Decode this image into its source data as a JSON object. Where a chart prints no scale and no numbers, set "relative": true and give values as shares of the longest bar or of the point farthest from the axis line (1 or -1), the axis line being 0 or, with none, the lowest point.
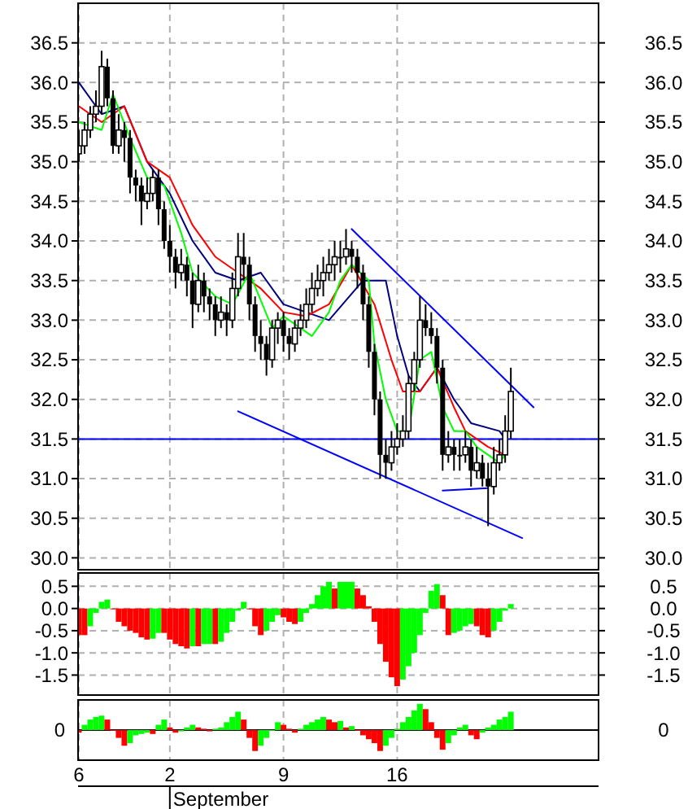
{
  "chart_data": [
    {
      "type": "candlestick",
      "color": "#000000",
      "grid": true,
      "tick_labels": "y",
      "categories": [
        "6",
        null,
        null,
        null,
        null,
        null,
        null,
        null,
        null,
        null,
        null,
        null,
        null,
        null,
        null,
        null,
        "2",
        null,
        null,
        null,
        null,
        null,
        null,
        null,
        null,
        null,
        null,
        null,
        null,
        null,
        null,
        null,
        null,
        null,
        null,
        null,
        "9",
        null,
        null,
        null,
        null,
        null,
        null,
        null,
        null,
        null,
        null,
        null,
        null,
        null,
        null,
        null,
        null,
        null,
        null,
        null,
        "16",
        null,
        null,
        null,
        null,
        null,
        null,
        null,
        null,
        null,
        null,
        null,
        null,
        null,
        null,
        null,
        null,
        null,
        null,
        null,
        null,
        null,
        null,
        null,
        null,
        null,
        null,
        null,
        null,
        null,
        null,
        null,
        null,
        null,
        null,
        null
      ],
      "ohlc": [
        [
          35.1,
          35.4,
          35.0,
          35.2
        ],
        [
          35.2,
          35.5,
          35.1,
          35.4
        ],
        [
          35.4,
          35.7,
          35.3,
          35.6
        ],
        [
          35.6,
          35.9,
          35.5,
          35.7
        ],
        [
          35.7,
          36.4,
          35.6,
          36.2
        ],
        [
          36.2,
          36.3,
          35.7,
          35.8
        ],
        [
          35.8,
          35.9,
          35.1,
          35.2
        ],
        [
          35.2,
          35.6,
          35.1,
          35.4
        ],
        [
          35.4,
          35.5,
          35.0,
          35.3
        ],
        [
          35.3,
          35.4,
          34.6,
          34.8
        ],
        [
          34.8,
          34.9,
          34.5,
          34.7
        ],
        [
          34.7,
          34.8,
          34.2,
          34.5
        ],
        [
          34.5,
          34.8,
          34.4,
          34.6
        ],
        [
          34.6,
          34.9,
          34.5,
          34.8
        ],
        [
          34.8,
          34.9,
          34.2,
          34.4
        ],
        [
          34.4,
          34.5,
          33.9,
          34.0
        ],
        [
          34.0,
          34.2,
          33.6,
          33.8
        ],
        [
          33.8,
          33.9,
          33.4,
          33.6
        ],
        [
          33.6,
          33.9,
          33.5,
          33.7
        ],
        [
          33.7,
          33.8,
          33.3,
          33.5
        ],
        [
          33.5,
          33.6,
          32.9,
          33.2
        ],
        [
          33.2,
          33.7,
          33.1,
          33.5
        ],
        [
          33.5,
          33.6,
          33.1,
          33.3
        ],
        [
          33.3,
          33.4,
          33.0,
          33.2
        ],
        [
          33.2,
          33.3,
          32.8,
          33.0
        ],
        [
          33.0,
          33.3,
          32.9,
          33.1
        ],
        [
          33.1,
          33.2,
          32.8,
          33.0
        ],
        [
          33.0,
          33.6,
          32.9,
          33.4
        ],
        [
          33.4,
          34.1,
          33.3,
          33.8
        ],
        [
          33.8,
          34.1,
          33.5,
          33.7
        ],
        [
          33.7,
          33.8,
          33.0,
          33.2
        ],
        [
          33.2,
          33.3,
          32.6,
          32.8
        ],
        [
          32.8,
          33.0,
          32.5,
          32.7
        ],
        [
          32.7,
          32.8,
          32.3,
          32.5
        ],
        [
          32.5,
          33.0,
          32.4,
          32.9
        ],
        [
          32.9,
          33.1,
          32.7,
          33.0
        ],
        [
          33.0,
          33.1,
          32.6,
          32.8
        ],
        [
          32.8,
          32.9,
          32.5,
          32.7
        ],
        [
          32.7,
          33.0,
          32.6,
          32.9
        ],
        [
          32.9,
          33.2,
          32.8,
          33.0
        ],
        [
          33.0,
          33.4,
          32.9,
          33.2
        ],
        [
          33.2,
          33.6,
          33.1,
          33.4
        ],
        [
          33.4,
          33.7,
          33.3,
          33.5
        ],
        [
          33.5,
          33.8,
          33.3,
          33.6
        ],
        [
          33.6,
          33.9,
          33.5,
          33.7
        ],
        [
          33.7,
          34.0,
          33.5,
          33.8
        ],
        [
          33.8,
          34.0,
          33.6,
          33.8
        ],
        [
          33.8,
          34.15,
          33.7,
          33.9
        ],
        [
          33.9,
          34.0,
          33.6,
          33.8
        ],
        [
          33.8,
          33.9,
          33.4,
          33.6
        ],
        [
          33.6,
          33.7,
          33.0,
          33.2
        ],
        [
          33.2,
          33.3,
          32.4,
          32.6
        ],
        [
          32.6,
          32.7,
          31.8,
          32.0
        ],
        [
          32.0,
          32.1,
          31.0,
          31.3
        ],
        [
          31.3,
          31.5,
          31.0,
          31.2
        ],
        [
          31.2,
          31.6,
          31.1,
          31.4
        ],
        [
          31.4,
          31.7,
          31.3,
          31.5
        ],
        [
          31.5,
          31.8,
          31.4,
          31.6
        ],
        [
          31.6,
          32.3,
          31.5,
          32.2
        ],
        [
          32.2,
          32.6,
          32.1,
          32.5
        ],
        [
          32.5,
          33.3,
          32.4,
          33.0
        ],
        [
          33.0,
          33.2,
          32.8,
          32.9
        ],
        [
          32.9,
          33.1,
          32.7,
          32.8
        ],
        [
          32.8,
          32.9,
          32.2,
          32.4
        ],
        [
          32.4,
          32.5,
          31.1,
          31.3
        ],
        [
          31.3,
          31.6,
          31.2,
          31.4
        ],
        [
          31.4,
          31.5,
          31.1,
          31.3
        ],
        [
          31.3,
          31.5,
          31.1,
          31.3
        ],
        [
          31.3,
          31.6,
          31.2,
          31.4
        ],
        [
          31.4,
          31.5,
          30.9,
          31.1
        ],
        [
          31.1,
          31.4,
          31.0,
          31.2
        ],
        [
          31.2,
          31.3,
          30.9,
          31.0
        ],
        [
          31.0,
          31.2,
          30.4,
          30.9
        ],
        [
          30.9,
          31.4,
          30.8,
          31.2
        ],
        [
          31.2,
          31.5,
          31.1,
          31.3
        ],
        [
          31.3,
          31.8,
          31.2,
          31.6
        ],
        [
          31.6,
          32.4,
          31.5,
          32.1
        ],
        null,
        null,
        null,
        null,
        null,
        null,
        null,
        null,
        null,
        null,
        null,
        null,
        null,
        null,
        null
      ],
      "series": [
        {
          "type": "line",
          "color": "#000080",
          "values": [
            36.0,
            null,
            null,
            null,
            35.6,
            null,
            null,
            null,
            35.7,
            null,
            null,
            null,
            35.0,
            null,
            null,
            null,
            34.6,
            null,
            null,
            null,
            34.0,
            null,
            null,
            null,
            33.6,
            null,
            null,
            null,
            33.5,
            null,
            null,
            null,
            33.6,
            null,
            null,
            null,
            33.2,
            null,
            null,
            null,
            33.1,
            null,
            null,
            null,
            33.0,
            null,
            null,
            null,
            null,
            null,
            33.5,
            null,
            null,
            null,
            33.5,
            null,
            32.8,
            null,
            32.3,
            null,
            32.1,
            null,
            null,
            32.4,
            null,
            null,
            32.0,
            null,
            null,
            31.7,
            null,
            null,
            null,
            null,
            31.6,
            31.5,
            null,
            null,
            null,
            null,
            null,
            null,
            null,
            null,
            null,
            null,
            null,
            null,
            null,
            null,
            null,
            null
          ]
        },
        {
          "type": "line",
          "color": "#ff0000",
          "values": [
            35.7,
            null,
            null,
            null,
            35.5,
            null,
            null,
            null,
            35.7,
            null,
            null,
            null,
            35.0,
            null,
            null,
            null,
            34.8,
            null,
            null,
            null,
            34.2,
            null,
            null,
            null,
            33.8,
            null,
            null,
            null,
            33.6,
            null,
            null,
            null,
            33.4,
            null,
            null,
            null,
            33.1,
            null,
            null,
            null,
            33.05,
            null,
            null,
            null,
            33.2,
            null,
            null,
            null,
            33.7,
            null,
            null,
            null,
            33.2,
            null,
            null,
            32.5,
            null,
            32.1,
            null,
            null,
            32.1,
            null,
            null,
            32.4,
            null,
            null,
            31.9,
            null,
            31.6,
            null,
            null,
            null,
            31.4,
            null,
            null,
            31.3,
            null,
            null,
            null,
            null,
            null,
            null,
            null,
            null,
            null,
            null,
            null,
            null,
            null,
            null,
            null,
            null
          ]
        },
        {
          "type": "line",
          "color": "#00ff00",
          "values": [
            35.5,
            null,
            null,
            null,
            35.4,
            null,
            35.85,
            null,
            null,
            35.3,
            null,
            null,
            34.8,
            null,
            null,
            34.7,
            null,
            null,
            34.1,
            null,
            33.6,
            null,
            null,
            null,
            33.3,
            null,
            null,
            33.2,
            null,
            null,
            33.6,
            null,
            null,
            null,
            32.9,
            null,
            33.05,
            null,
            null,
            32.9,
            null,
            32.8,
            null,
            null,
            33.1,
            null,
            33.5,
            null,
            33.7,
            null,
            null,
            33.5,
            32.7,
            null,
            32.0,
            null,
            31.6,
            null,
            31.6,
            null,
            32.5,
            null,
            32.6,
            null,
            31.9,
            null,
            31.6,
            null,
            31.6,
            null,
            31.4,
            null,
            31.3,
            null,
            31.2,
            31.3,
            null,
            null,
            null,
            null,
            null,
            null,
            null,
            null,
            null,
            null,
            null,
            null,
            null,
            null,
            null,
            null
          ]
        },
        {
          "type": "line",
          "color": "#0000ff",
          "values": [
            null,
            null,
            null,
            null,
            null,
            null,
            null,
            null,
            null,
            null,
            null,
            null,
            null,
            null,
            null,
            null,
            null,
            null,
            null,
            null,
            null,
            null,
            null,
            null,
            null,
            null,
            null,
            null,
            null,
            null,
            null,
            null,
            null,
            null,
            null,
            null,
            null,
            null,
            null,
            null,
            null,
            null,
            null,
            null,
            null,
            null,
            null,
            null,
            34.15,
            null,
            null,
            null,
            null,
            null,
            null,
            null,
            null,
            null,
            null,
            null,
            null,
            null,
            null,
            null,
            null,
            null,
            null,
            null,
            null,
            null,
            null,
            null,
            null,
            null,
            null,
            null,
            null,
            null,
            null,
            null,
            31.9,
            null,
            null,
            null,
            null,
            null,
            null,
            null,
            null,
            null,
            null,
            null
          ]
        },
        {
          "type": "line",
          "color": "#0000ff",
          "values": [
            null,
            null,
            null,
            null,
            null,
            null,
            null,
            null,
            null,
            null,
            null,
            null,
            null,
            null,
            null,
            null,
            null,
            null,
            null,
            null,
            null,
            null,
            null,
            null,
            null,
            null,
            null,
            null,
            31.85,
            null,
            null,
            null,
            null,
            null,
            null,
            null,
            null,
            null,
            null,
            null,
            null,
            null,
            null,
            null,
            null,
            null,
            null,
            null,
            null,
            null,
            null,
            null,
            null,
            null,
            null,
            null,
            null,
            null,
            null,
            null,
            null,
            null,
            null,
            null,
            null,
            null,
            null,
            null,
            null,
            null,
            null,
            null,
            null,
            null,
            null,
            null,
            null,
            null,
            30.25,
            null,
            null,
            null,
            null,
            null,
            null,
            null,
            null,
            null,
            null,
            null,
            null,
            null
          ]
        },
        {
          "type": "line",
          "color": "#0000ff",
          "values": [
            null,
            null,
            null,
            null,
            null,
            null,
            null,
            null,
            null,
            null,
            null,
            null,
            null,
            null,
            null,
            null,
            null,
            null,
            null,
            null,
            null,
            null,
            null,
            null,
            null,
            null,
            null,
            null,
            null,
            null,
            null,
            null,
            null,
            null,
            null,
            null,
            null,
            null,
            null,
            null,
            null,
            null,
            null,
            null,
            null,
            null,
            null,
            null,
            null,
            null,
            null,
            null,
            null,
            null,
            null,
            null,
            null,
            null,
            null,
            null,
            null,
            null,
            null,
            null,
            30.85,
            null,
            null,
            null,
            null,
            null,
            null,
            null,
            30.88,
            null,
            null,
            null,
            null,
            null,
            null,
            null,
            null,
            null,
            null,
            null,
            null,
            null,
            null,
            null,
            null,
            null,
            null,
            null
          ]
        }
      ],
      "ref_lines": [
        {
          "axis": "y",
          "value": 31.5,
          "color": "#0000ff"
        }
      ],
      "ylim": [
        29.85,
        37.0
      ],
      "yticks": [
        {
          "value": 30,
          "label": "30.0"
        },
        {
          "value": 30.5,
          "label": "30.5"
        },
        {
          "value": 31,
          "label": "31.0"
        },
        {
          "value": 31.5,
          "label": "31.5"
        },
        {
          "value": 32,
          "label": "32.0"
        },
        {
          "value": 32.5,
          "label": "32.5"
        },
        {
          "value": 33,
          "label": "33.0"
        },
        {
          "value": 33.5,
          "label": "33.5"
        },
        {
          "value": 34,
          "label": "34.0"
        },
        {
          "value": 34.5,
          "label": "34.5"
        },
        {
          "value": 35,
          "label": "35.0"
        },
        {
          "value": 35.5,
          "label": "35.5"
        },
        {
          "value": 36,
          "label": "36.0"
        },
        {
          "value": 36.5,
          "label": "36.5"
        }
      ],
      "y2lim": [
        29.85,
        37.0
      ],
      "y2ticks": [
        {
          "value": 30,
          "label": "30.0"
        },
        {
          "value": 30.5,
          "label": "30.5"
        },
        {
          "value": 31,
          "label": "31.0"
        },
        {
          "value": 31.5,
          "label": "31.5"
        },
        {
          "value": 32,
          "label": "32.0"
        },
        {
          "value": 32.5,
          "label": "32.5"
        },
        {
          "value": 33,
          "label": "33.0"
        },
        {
          "value": 33.5,
          "label": "33.5"
        },
        {
          "value": 34,
          "label": "34.0"
        },
        {
          "value": 34.5,
          "label": "34.5"
        },
        {
          "value": 35,
          "label": "35.0"
        },
        {
          "value": 35.5,
          "label": "35.5"
        },
        {
          "value": 36,
          "label": "36.0"
        },
        {
          "value": 36.5,
          "label": "36.5"
        }
      ]
    },
    {
      "type": "bar",
      "grid": true,
      "tick_labels": "y",
      "categories": [
        "6",
        null,
        null,
        null,
        null,
        null,
        null,
        null,
        null,
        null,
        null,
        null,
        null,
        null,
        null,
        null,
        "2",
        null,
        null,
        null,
        null,
        null,
        null,
        null,
        null,
        null,
        null,
        null,
        null,
        null,
        null,
        null,
        null,
        null,
        null,
        null,
        "9",
        null,
        null,
        null,
        null,
        null,
        null,
        null,
        null,
        null,
        null,
        null,
        null,
        null,
        null,
        null,
        null,
        null,
        null,
        null,
        "16",
        null,
        null,
        null,
        null,
        null,
        null,
        null,
        null,
        null,
        null,
        null,
        null,
        null,
        null,
        null,
        null,
        null,
        null,
        null,
        null,
        null,
        null,
        null,
        null,
        null,
        null,
        null,
        null,
        null,
        null,
        null,
        null,
        null,
        null,
        null
      ],
      "values": [
        -0.6,
        -0.6,
        -0.4,
        -0.1,
        0.15,
        0.2,
        0,
        -0.3,
        -0.4,
        -0.5,
        -0.55,
        -0.65,
        -0.7,
        -0.68,
        -0.55,
        -0.55,
        -0.7,
        -0.8,
        -0.85,
        -0.9,
        -0.85,
        -0.85,
        -0.8,
        -0.8,
        -0.8,
        -0.75,
        -0.55,
        -0.3,
        -0.05,
        0.15,
        0,
        -0.4,
        -0.6,
        -0.5,
        -0.3,
        -0.15,
        -0.2,
        -0.3,
        -0.35,
        -0.3,
        -0.1,
        0.1,
        0.3,
        0.5,
        0.6,
        0.45,
        0.6,
        0.6,
        0.6,
        0.45,
        0.3,
        0.05,
        -0.3,
        -0.8,
        -1.2,
        -1.55,
        -1.75,
        -1.6,
        -1.3,
        -1,
        -0.6,
        -0.1,
        0.4,
        0.55,
        0.3,
        -0.6,
        -0.55,
        -0.5,
        -0.4,
        -0.35,
        -0.4,
        -0.6,
        -0.65,
        -0.5,
        -0.3,
        -0.05,
        0.1,
        null,
        null,
        null,
        null,
        null,
        null,
        null,
        null,
        null,
        null,
        null,
        null,
        null,
        null,
        null
      ],
      "colors": [
        "#ff0000",
        "#ff0000",
        "#00ff00",
        "#00ff00",
        "#00ff00",
        "#00ff00",
        "#ff0000",
        "#ff0000",
        "#ff0000",
        "#ff0000",
        "#ff0000",
        "#ff0000",
        "#ff0000",
        "#00ff00",
        "#00ff00",
        "#ff0000",
        "#ff0000",
        "#ff0000",
        "#ff0000",
        "#ff0000",
        "#00ff00",
        "#ff0000",
        "#00ff00",
        "#00ff00",
        "#ff0000",
        "#00ff00",
        "#00ff00",
        "#00ff00",
        "#00ff00",
        "#00ff00",
        "#ff0000",
        "#ff0000",
        "#ff0000",
        "#00ff00",
        "#00ff00",
        "#00ff00",
        "#ff0000",
        "#ff0000",
        "#ff0000",
        "#00ff00",
        "#00ff00",
        "#00ff00",
        "#00ff00",
        "#00ff00",
        "#00ff00",
        "#ff0000",
        "#00ff00",
        "#00ff00",
        "#00ff00",
        "#ff0000",
        "#ff0000",
        "#ff0000",
        "#ff0000",
        "#ff0000",
        "#ff0000",
        "#ff0000",
        "#ff0000",
        "#00ff00",
        "#00ff00",
        "#00ff00",
        "#00ff00",
        "#00ff00",
        "#00ff00",
        "#00ff00",
        "#ff0000",
        "#ff0000",
        "#00ff00",
        "#00ff00",
        "#00ff00",
        "#00ff00",
        "#ff0000",
        "#ff0000",
        "#ff0000",
        "#00ff00",
        "#00ff00",
        "#00ff00",
        "#00ff00",
        null,
        null,
        null,
        null,
        null,
        null,
        null,
        null,
        null,
        null,
        null,
        null,
        null,
        null,
        null
      ],
      "ylim": [
        -1.95,
        0.8
      ],
      "yticks": [
        {
          "value": -1.5,
          "label": "-1.5"
        },
        {
          "value": -1,
          "label": "-1.0"
        },
        {
          "value": -0.5,
          "label": "-0.5"
        },
        {
          "value": 0,
          "label": "0.0"
        },
        {
          "value": 0.5,
          "label": "0.5"
        }
      ],
      "y2lim": [
        -1.95,
        0.8
      ],
      "y2ticks": [
        {
          "value": -1.5,
          "label": "-1.5"
        },
        {
          "value": -1,
          "label": "-1.0"
        },
        {
          "value": -0.5,
          "label": "-0.5"
        },
        {
          "value": 0,
          "label": "0.0"
        },
        {
          "value": 0.5,
          "label": "0.5"
        }
      ]
    },
    {
      "type": "bar",
      "relative": true,
      "grid": "x",
      "tick_labels": "x",
      "xlabel": "September",
      "categories": [
        "6",
        null,
        null,
        null,
        null,
        null,
        null,
        null,
        null,
        null,
        null,
        null,
        null,
        null,
        null,
        null,
        "2",
        null,
        null,
        null,
        null,
        null,
        null,
        null,
        null,
        null,
        null,
        null,
        null,
        null,
        null,
        null,
        null,
        null,
        null,
        null,
        "9",
        null,
        null,
        null,
        null,
        null,
        null,
        null,
        null,
        null,
        null,
        null,
        null,
        null,
        null,
        null,
        null,
        null,
        null,
        null,
        "16",
        null,
        null,
        null,
        null,
        null,
        null,
        null,
        null,
        null,
        null,
        null,
        null,
        null,
        null,
        null,
        null,
        null,
        null,
        null,
        null,
        null,
        null,
        null,
        null,
        null,
        null,
        null,
        null,
        null,
        null,
        null,
        null,
        null,
        null,
        null
      ],
      "values": [
        -0.1,
        0.2,
        0.4,
        0.5,
        0.55,
        0.4,
        0,
        -0.3,
        -0.6,
        -0.5,
        -0.2,
        -0.15,
        -0.1,
        -0.15,
        0.2,
        0.4,
        0.1,
        -0.1,
        -0.05,
        0.1,
        0.2,
        0.1,
        0.05,
        -0.05,
        0.05,
        0.1,
        0.3,
        0.5,
        0.7,
        0.4,
        -0.3,
        -0.8,
        -0.6,
        -0.3,
        0,
        0.3,
        0.2,
        0.05,
        -0.1,
        0.05,
        0.2,
        0.3,
        0.4,
        0.5,
        0.4,
        0.3,
        0.35,
        0.1,
        0.15,
        0,
        -0.2,
        -0.35,
        -0.5,
        -0.8,
        -0.6,
        -0.3,
        0.05,
        0.3,
        0.5,
        0.75,
        1,
        0.8,
        0.3,
        -0.3,
        -0.75,
        -0.5,
        -0.2,
        0.1,
        0.2,
        -0.2,
        -0.35,
        -0.1,
        0.1,
        0.2,
        0.4,
        0.5,
        0.7,
        null,
        null,
        null,
        null,
        null,
        null,
        null,
        null,
        null,
        null,
        null,
        null,
        null,
        null,
        null
      ],
      "colors": [
        "#ff0000",
        "#00ff00",
        "#00ff00",
        "#00ff00",
        "#00ff00",
        "#ff0000",
        "#ff0000",
        "#ff0000",
        "#ff0000",
        "#00ff00",
        "#00ff00",
        "#00ff00",
        "#00ff00",
        "#ff0000",
        "#00ff00",
        "#00ff00",
        "#ff0000",
        "#ff0000",
        "#00ff00",
        "#00ff00",
        "#00ff00",
        "#ff0000",
        "#ff0000",
        "#ff0000",
        "#00ff00",
        "#00ff00",
        "#00ff00",
        "#00ff00",
        "#00ff00",
        "#ff0000",
        "#ff0000",
        "#ff0000",
        "#00ff00",
        "#00ff00",
        "#00ff00",
        "#00ff00",
        "#ff0000",
        "#ff0000",
        "#ff0000",
        "#00ff00",
        "#00ff00",
        "#00ff00",
        "#00ff00",
        "#00ff00",
        "#ff0000",
        "#ff0000",
        "#00ff00",
        "#ff0000",
        "#00ff00",
        "#ff0000",
        "#ff0000",
        "#ff0000",
        "#ff0000",
        "#ff0000",
        "#00ff00",
        "#00ff00",
        "#00ff00",
        "#00ff00",
        "#00ff00",
        "#00ff00",
        "#00ff00",
        "#ff0000",
        "#ff0000",
        "#ff0000",
        "#ff0000",
        "#00ff00",
        "#00ff00",
        "#00ff00",
        "#00ff00",
        "#ff0000",
        "#ff0000",
        "#00ff00",
        "#00ff00",
        "#00ff00",
        "#00ff00",
        "#00ff00",
        "#00ff00",
        null,
        null,
        null,
        null,
        null,
        null,
        null,
        null,
        null,
        null,
        null,
        null,
        null,
        null,
        null
      ],
      "ref_lines": [
        {
          "axis": "y",
          "value": 0,
          "label": "0"
        }
      ]
    }
  ]
}
